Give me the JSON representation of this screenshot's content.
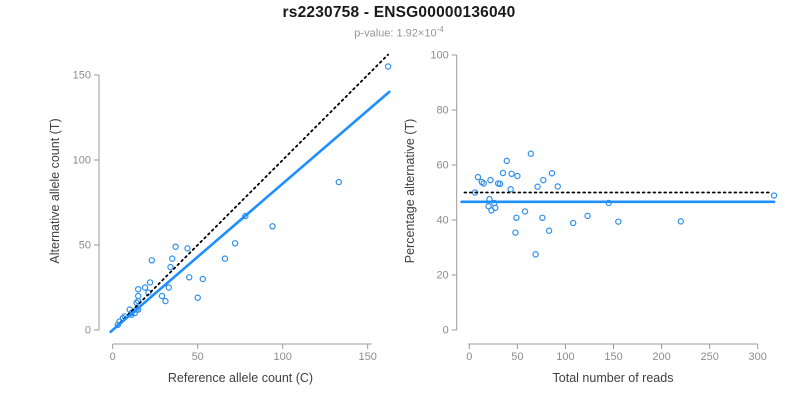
{
  "header": {
    "title": "rs2230758 - ENSG00000136040",
    "pvalue_label": "p-value: 1.92×10",
    "pvalue_exponent": "-4"
  },
  "colors": {
    "accent_blue": "#1E8FFF",
    "point_blue": "#2E8FEC",
    "dotted_black": "#000000",
    "axis_gray": "#999999",
    "tick_label_gray": "#8c8c8c",
    "axis_title_gray": "#404040",
    "title_black": "#1a1a1a",
    "subtitle_gray": "#979797"
  },
  "chart_data": [
    {
      "type": "scatter",
      "name": "alt-vs-ref-allele-count",
      "xlabel": "Reference allele count (C)",
      "ylabel": "Alternative allele count (T)",
      "xticks": [
        0,
        50,
        100,
        150
      ],
      "yticks": [
        0,
        50,
        100,
        150
      ],
      "xlim": [
        0,
        163
      ],
      "ylim": [
        0,
        157
      ],
      "grid": false,
      "marker": "open-circle",
      "points": [
        [
          3,
          3
        ],
        [
          4,
          5
        ],
        [
          6,
          7
        ],
        [
          7,
          8
        ],
        [
          11,
          9
        ],
        [
          13,
          10
        ],
        [
          10,
          12
        ],
        [
          11,
          10
        ],
        [
          14,
          12
        ],
        [
          15,
          12
        ],
        [
          14,
          16
        ],
        [
          15,
          17
        ],
        [
          15,
          20
        ],
        [
          15,
          24
        ],
        [
          19,
          25
        ],
        [
          21,
          22
        ],
        [
          22,
          28
        ],
        [
          29,
          20
        ],
        [
          31,
          17
        ],
        [
          33,
          25
        ],
        [
          23,
          41
        ],
        [
          34,
          37
        ],
        [
          35,
          42
        ],
        [
          37,
          49
        ],
        [
          44,
          48
        ],
        [
          45,
          31
        ],
        [
          50,
          19
        ],
        [
          53,
          30
        ],
        [
          66,
          42
        ],
        [
          72,
          51
        ],
        [
          78,
          67
        ],
        [
          94,
          61
        ],
        [
          133,
          87
        ],
        [
          162,
          155
        ]
      ],
      "lines": [
        {
          "name": "identity-line",
          "style": "dotted",
          "color_key": "dotted_black",
          "slope": 1,
          "intercept": 0,
          "x_range": [
            0,
            162
          ],
          "width": 1.8
        },
        {
          "name": "regression-line",
          "style": "solid",
          "color_key": "accent_blue",
          "slope": 0.861,
          "intercept": 0,
          "x_range": [
            -1.2,
            162.7
          ],
          "width": 2.6
        }
      ]
    },
    {
      "type": "scatter",
      "name": "percentage-alt-vs-total-reads",
      "xlabel": "Total number of reads",
      "ylabel": "Percentage alternative (T)",
      "xticks": [
        0,
        50,
        100,
        150,
        200,
        250,
        300
      ],
      "yticks": [
        0,
        20,
        40,
        60,
        80,
        100
      ],
      "xlim": [
        0,
        317
      ],
      "ylim": [
        0,
        100
      ],
      "grid": false,
      "marker": "open-circle",
      "points": [
        [
          6,
          50
        ],
        [
          9,
          55.6
        ],
        [
          13,
          53.8
        ],
        [
          15,
          53.3
        ],
        [
          20,
          45
        ],
        [
          23,
          43.5
        ],
        [
          22,
          54.5
        ],
        [
          21,
          47.6
        ],
        [
          26,
          46.2
        ],
        [
          27,
          44.4
        ],
        [
          30,
          53.3
        ],
        [
          32,
          53.1
        ],
        [
          35,
          57.1
        ],
        [
          39,
          61.5
        ],
        [
          44,
          56.8
        ],
        [
          43,
          51.2
        ],
        [
          50,
          56
        ],
        [
          49,
          40.8
        ],
        [
          48,
          35.4
        ],
        [
          58,
          43.1
        ],
        [
          64,
          64.1
        ],
        [
          71,
          52.1
        ],
        [
          77,
          54.5
        ],
        [
          86,
          57
        ],
        [
          92,
          52.2
        ],
        [
          76,
          40.8
        ],
        [
          69,
          27.5
        ],
        [
          83,
          36.1
        ],
        [
          108,
          38.9
        ],
        [
          123,
          41.5
        ],
        [
          145,
          46.2
        ],
        [
          155,
          39.4
        ],
        [
          220,
          39.5
        ],
        [
          317,
          48.9
        ]
      ],
      "lines": [
        {
          "name": "fifty-percent-line",
          "style": "dotted",
          "color_key": "dotted_black",
          "slope": 0,
          "intercept": 50,
          "x_range": [
            -5,
            313
          ],
          "width": 1.8
        },
        {
          "name": "fitted-percentage-line",
          "style": "solid",
          "color_key": "accent_blue",
          "slope": 0,
          "intercept": 46.6,
          "x_range": [
            -8,
            317
          ],
          "width": 2.6
        }
      ]
    }
  ]
}
